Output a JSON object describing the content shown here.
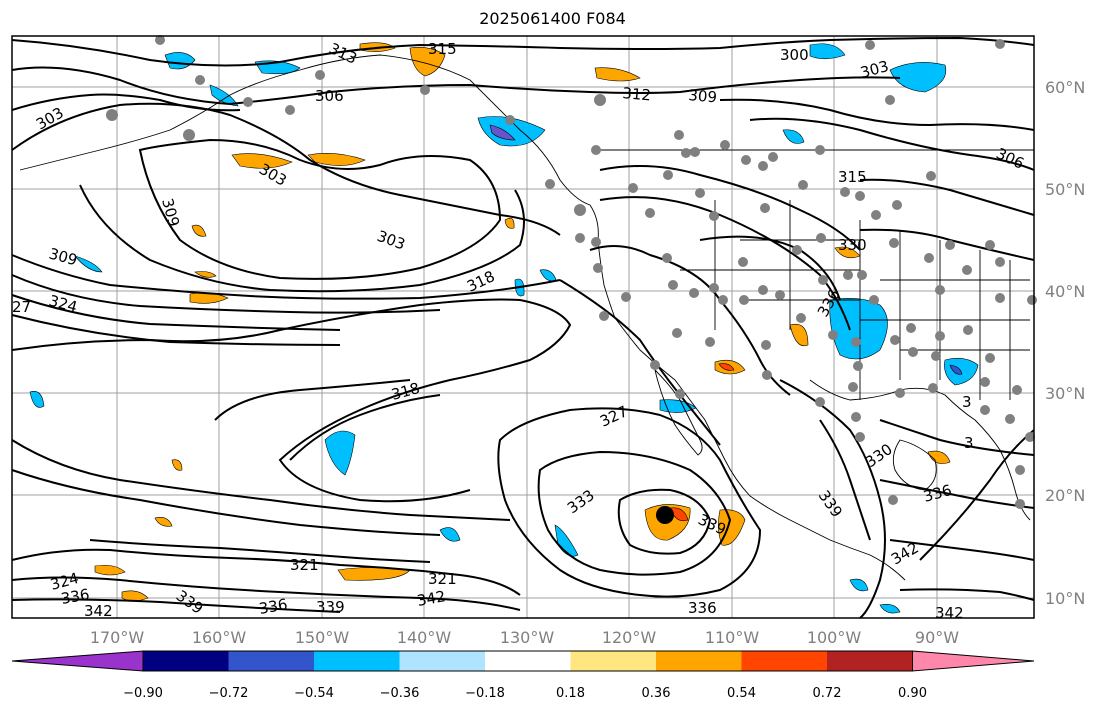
{
  "title": "2025061400 F084",
  "lat_labels": [
    "60°N",
    "50°N",
    "40°N",
    "30°N",
    "20°N",
    "10°N"
  ],
  "lon_labels": [
    "170°W",
    "160°W",
    "150°W",
    "140°W",
    "130°W",
    "120°W",
    "110°W",
    "100°W",
    "90°W"
  ],
  "contour_labels": [
    "315",
    "313",
    "300",
    "303",
    "312",
    "309",
    "306",
    "303",
    "303",
    "309",
    "303",
    "309",
    "306",
    "315",
    "330",
    "318",
    "324",
    "27",
    "336",
    "318",
    "327",
    "330",
    "333",
    "339",
    "336",
    "339",
    "321",
    "324",
    "336",
    "342",
    "339",
    "336",
    "342",
    "339",
    "321",
    "342",
    "3",
    "3"
  ],
  "colorbar": {
    "ticks": [
      "−0.90",
      "−0.72",
      "−0.54",
      "−0.36",
      "−0.18",
      "0.18",
      "0.36",
      "0.54",
      "0.72",
      "0.90"
    ],
    "colors": [
      "#9933cc",
      "#000080",
      "#3355cc",
      "#00bfff",
      "#aee4ff",
      "#ffffff",
      "#ffe680",
      "#ffa500",
      "#ff4500",
      "#b22222",
      "#ff88aa"
    ]
  },
  "colors": {
    "contour": "#000000",
    "station": "#808080",
    "storm_center": "#000000"
  }
}
